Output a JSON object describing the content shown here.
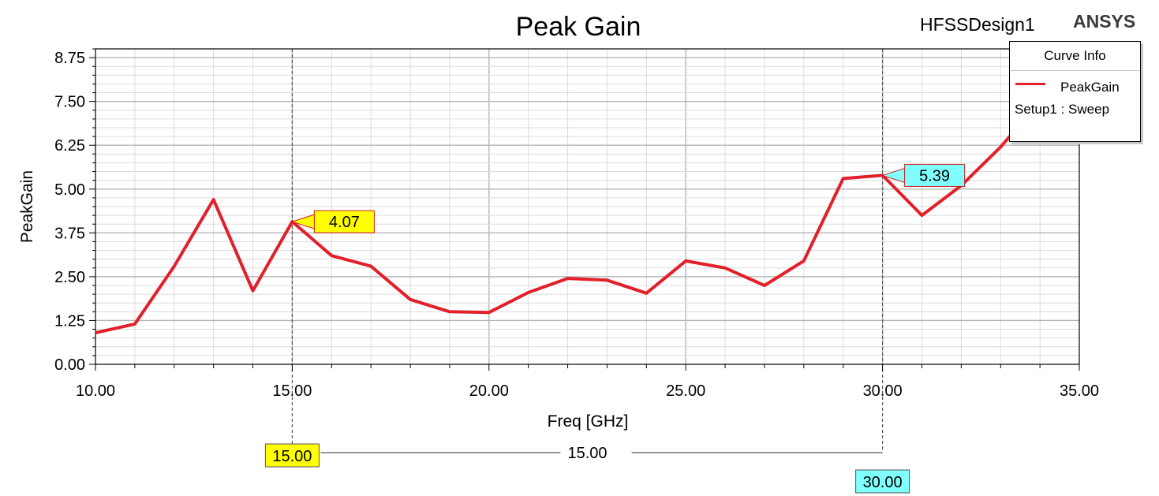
{
  "header": {
    "design_name": "HFSSDesign1",
    "brand": "ANSYS"
  },
  "legend": {
    "title": "Curve Info",
    "series_name": "PeakGain",
    "setup": "Setup1 : Sweep"
  },
  "colors": {
    "series": "#e2202a",
    "marker_1": "#ffff00",
    "marker_2": "#80ffff",
    "grid_major": "#b4b4b4",
    "grid_minor": "#dcdcdc"
  },
  "chart_data": {
    "type": "line",
    "title": "Peak Gain",
    "xlabel": "Freq [GHz]",
    "ylabel": "PeakGain",
    "xlim": [
      10,
      35
    ],
    "ylim": [
      0,
      9
    ],
    "x_ticks": [
      10,
      15,
      20,
      25,
      30,
      35
    ],
    "x_tick_labels": [
      "10.00",
      "15.00",
      "20.00",
      "25.00",
      "30.00",
      "35.00"
    ],
    "y_ticks": [
      0,
      1.25,
      2.5,
      3.75,
      5,
      6.25,
      7.5,
      8.75
    ],
    "y_tick_labels": [
      "0.00",
      "1.25",
      "2.50",
      "3.75",
      "5.00",
      "6.25",
      "7.50",
      "8.75"
    ],
    "grid": true,
    "legend_position": "top-right",
    "series": [
      {
        "name": "PeakGain",
        "x": [
          10,
          11,
          12,
          13,
          14,
          15,
          16,
          17,
          18,
          19,
          20,
          21,
          22,
          23,
          24,
          25,
          26,
          27,
          28,
          29,
          30,
          31,
          32,
          33,
          34,
          35
        ],
        "y": [
          0.9,
          1.15,
          2.8,
          4.7,
          2.1,
          4.07,
          3.1,
          2.8,
          1.85,
          1.5,
          1.48,
          2.05,
          2.45,
          2.4,
          2.03,
          2.95,
          2.75,
          2.25,
          2.95,
          5.3,
          5.39,
          4.25,
          5.1,
          6.2,
          7.5,
          8.8
        ]
      }
    ],
    "markers": [
      {
        "x": 15,
        "y": 4.07,
        "value_label": "4.07",
        "x_label": "15.00"
      },
      {
        "x": 30,
        "y": 5.39,
        "value_label": "5.39",
        "x_label": "30.00"
      }
    ],
    "delta_label": "15.00"
  }
}
